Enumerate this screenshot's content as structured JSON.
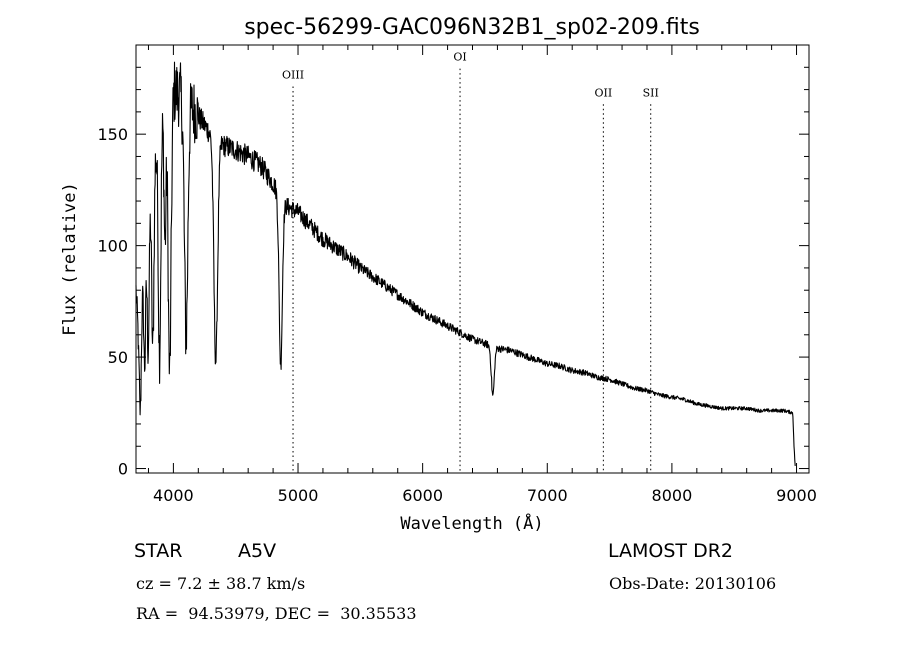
{
  "chart_data": {
    "type": "line",
    "title": "spec-56299-GAC096N32B1_sp02-209.fits",
    "xlabel": "Wavelength (Å)",
    "ylabel": "Flux (relative)",
    "xlim": [
      3700,
      9100
    ],
    "ylim": [
      -2,
      190
    ],
    "xticks": [
      4000,
      5000,
      6000,
      7000,
      8000,
      9000
    ],
    "xtick_labels": [
      "4000",
      "5000",
      "6000",
      "7000",
      "8000",
      "9000"
    ],
    "yticks": [
      0,
      50,
      100,
      150
    ],
    "ytick_labels": [
      "0",
      "50",
      "100",
      "150"
    ],
    "grid": false,
    "continuum": [
      [
        3700,
        80
      ],
      [
        3720,
        60
      ],
      [
        3760,
        90
      ],
      [
        3800,
        115
      ],
      [
        3850,
        140
      ],
      [
        3900,
        155
      ],
      [
        3950,
        165
      ],
      [
        4000,
        170
      ],
      [
        4050,
        168
      ],
      [
        4100,
        165
      ],
      [
        4150,
        162
      ],
      [
        4200,
        158
      ],
      [
        4300,
        150
      ],
      [
        4400,
        145
      ],
      [
        4500,
        143
      ],
      [
        4600,
        140
      ],
      [
        4700,
        136
      ],
      [
        4800,
        128
      ],
      [
        4900,
        118
      ],
      [
        5000,
        115
      ],
      [
        5100,
        109
      ],
      [
        5200,
        103
      ],
      [
        5300,
        99
      ],
      [
        5400,
        95
      ],
      [
        5500,
        90
      ],
      [
        5600,
        86
      ],
      [
        5700,
        82
      ],
      [
        5800,
        78
      ],
      [
        5900,
        74
      ],
      [
        6000,
        70
      ],
      [
        6100,
        67
      ],
      [
        6200,
        64
      ],
      [
        6300,
        61
      ],
      [
        6400,
        58
      ],
      [
        6500,
        56
      ],
      [
        6600,
        54
      ],
      [
        6700,
        53
      ],
      [
        6800,
        51
      ],
      [
        6900,
        49
      ],
      [
        7000,
        47
      ],
      [
        7100,
        46
      ],
      [
        7200,
        44
      ],
      [
        7300,
        43
      ],
      [
        7400,
        41
      ],
      [
        7500,
        40
      ],
      [
        7600,
        38
      ],
      [
        7700,
        36
      ],
      [
        7800,
        35
      ],
      [
        7900,
        33
      ],
      [
        8000,
        32
      ],
      [
        8100,
        31
      ],
      [
        8200,
        29
      ],
      [
        8300,
        28
      ],
      [
        8400,
        27
      ],
      [
        8500,
        27
      ],
      [
        8600,
        27
      ],
      [
        8700,
        26
      ],
      [
        8800,
        26
      ],
      [
        8900,
        26
      ],
      [
        8970,
        25
      ],
      [
        8980,
        10
      ],
      [
        8990,
        0
      ]
    ],
    "absorption_lines": [
      {
        "x": 3735,
        "depth": 45,
        "width": 8
      },
      {
        "x": 3770,
        "depth": 50,
        "width": 8
      },
      {
        "x": 3798,
        "depth": 60,
        "width": 8
      },
      {
        "x": 3835,
        "depth": 80,
        "width": 9
      },
      {
        "x": 3889,
        "depth": 100,
        "width": 10
      },
      {
        "x": 3933,
        "depth": 60,
        "width": 8
      },
      {
        "x": 3970,
        "depth": 125,
        "width": 12
      },
      {
        "x": 4102,
        "depth": 105,
        "width": 14
      },
      {
        "x": 4340,
        "depth": 100,
        "width": 15
      },
      {
        "x": 4861,
        "depth": 75,
        "width": 13
      },
      {
        "x": 6563,
        "depth": 22,
        "width": 12
      }
    ],
    "annotations": [
      {
        "label": "OIII",
        "x": 4960,
        "label_y": 175
      },
      {
        "label": "OI",
        "x": 6300,
        "label_y": 183
      },
      {
        "label": "OII",
        "x": 7450,
        "label_y": 167
      },
      {
        "label": "SII",
        "x": 7830,
        "label_y": 167
      }
    ]
  },
  "info": {
    "class": "STAR",
    "subclass": "A5V",
    "survey": "LAMOST DR2",
    "cz": "cz = 7.2 ± 38.7 km/s",
    "obs_date": "Obs-Date: 20130106",
    "coords": "RA =  94.53979, DEC =  30.35533"
  }
}
